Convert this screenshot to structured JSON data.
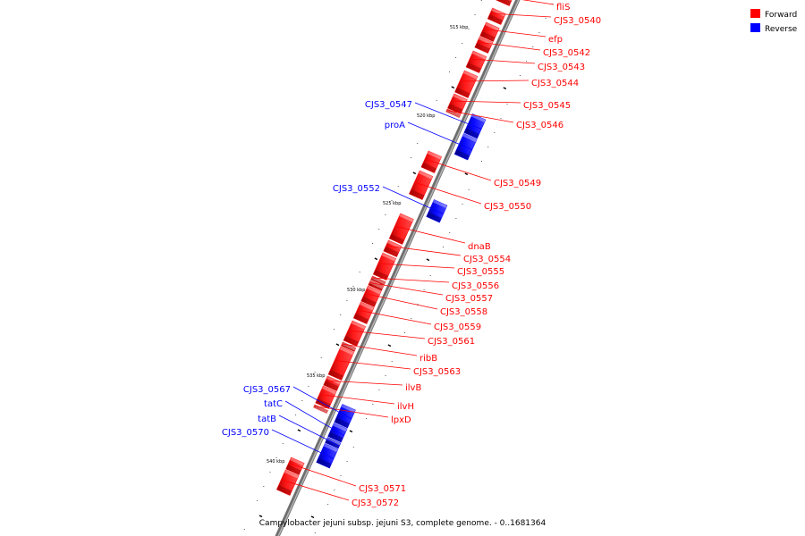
{
  "caption": "Campylobacter jejuni subsp. jejuni S3, complete genome. - 0..1681364",
  "legend": [
    {
      "label": "Forward",
      "color": "#ff0000"
    },
    {
      "label": "Reverse",
      "color": "#0000ff"
    }
  ],
  "colors": {
    "forward": "#ff0000",
    "reverse": "#0000ff",
    "backbone": "#808080"
  },
  "scale_labels": [
    "515 kbp",
    "520 kbp",
    "525 kbp",
    "530 kbp",
    "535 kbp",
    "540 kbp"
  ],
  "genes": [
    {
      "name": "fliS",
      "strand": "forward"
    },
    {
      "name": "CJS3_0540",
      "strand": "forward"
    },
    {
      "name": "efp",
      "strand": "forward"
    },
    {
      "name": "CJS3_0542",
      "strand": "forward"
    },
    {
      "name": "CJS3_0543",
      "strand": "forward"
    },
    {
      "name": "CJS3_0544",
      "strand": "forward"
    },
    {
      "name": "CJS3_0545",
      "strand": "forward"
    },
    {
      "name": "CJS3_0546",
      "strand": "forward"
    },
    {
      "name": "CJS3_0547",
      "strand": "reverse"
    },
    {
      "name": "proA",
      "strand": "reverse"
    },
    {
      "name": "CJS3_0549",
      "strand": "forward"
    },
    {
      "name": "CJS3_0550",
      "strand": "forward"
    },
    {
      "name": "CJS3_0552",
      "strand": "reverse"
    },
    {
      "name": "dnaB",
      "strand": "forward"
    },
    {
      "name": "CJS3_0554",
      "strand": "forward"
    },
    {
      "name": "CJS3_0555",
      "strand": "forward"
    },
    {
      "name": "CJS3_0556",
      "strand": "forward"
    },
    {
      "name": "CJS3_0557",
      "strand": "forward"
    },
    {
      "name": "CJS3_0558",
      "strand": "forward"
    },
    {
      "name": "CJS3_0559",
      "strand": "forward"
    },
    {
      "name": "CJS3_0561",
      "strand": "forward"
    },
    {
      "name": "ribB",
      "strand": "forward"
    },
    {
      "name": "CJS3_0563",
      "strand": "forward"
    },
    {
      "name": "ilvB",
      "strand": "forward"
    },
    {
      "name": "ilvH",
      "strand": "forward"
    },
    {
      "name": "lpxD",
      "strand": "forward"
    },
    {
      "name": "CJS3_0567",
      "strand": "reverse"
    },
    {
      "name": "tatC",
      "strand": "reverse"
    },
    {
      "name": "tatB",
      "strand": "reverse"
    },
    {
      "name": "CJS3_0570",
      "strand": "reverse"
    },
    {
      "name": "CJS3_0571",
      "strand": "forward"
    },
    {
      "name": "CJS3_0572",
      "strand": "forward"
    }
  ]
}
